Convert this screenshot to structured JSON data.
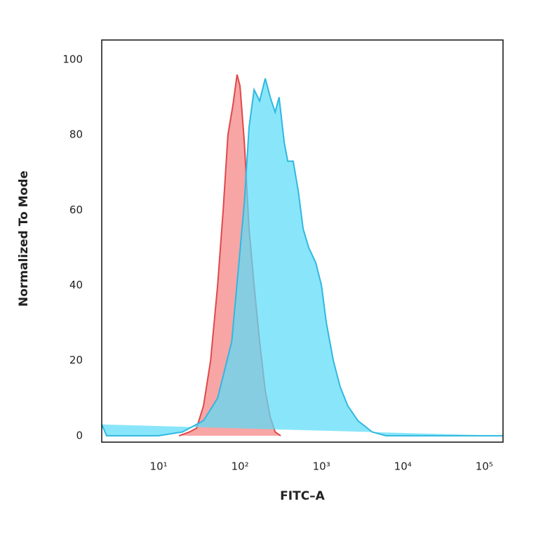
{
  "chart_data": {
    "type": "area",
    "xlabel": "FITC–A",
    "ylabel": "Normalized To Mode",
    "xscale": "log",
    "xlim": [
      2,
      170000
    ],
    "ylim": [
      -1.7,
      105.2
    ],
    "xticks": [
      {
        "value": 10,
        "label": "10¹"
      },
      {
        "value": 100,
        "label": "10²"
      },
      {
        "value": 1000,
        "label": "10³"
      },
      {
        "value": 10000,
        "label": "10⁴"
      },
      {
        "value": 100000,
        "label": "10⁵"
      }
    ],
    "yticks": [
      0,
      20,
      40,
      60,
      80,
      100
    ],
    "grid": false,
    "series": [
      {
        "color": "#e0484a",
        "fill": "#f8a0a0",
        "x": [
          17.8,
          23.9,
          29.2,
          35.6,
          43.5,
          53,
          62,
          71,
          82,
          92,
          100,
          113,
          129,
          149,
          174,
          204,
          235,
          270,
          316
        ],
        "values": [
          0,
          1,
          2,
          8,
          20,
          40,
          60,
          80,
          88,
          96,
          93,
          78,
          55,
          40,
          25,
          12,
          5,
          1,
          0
        ]
      },
      {
        "color": "#2fb8e0",
        "fill": "#5cdcf8",
        "x": [
          2,
          2.3,
          10,
          19.6,
          35.6,
          53,
          79,
          96,
          113,
          129,
          149,
          174,
          204,
          235,
          270,
          302,
          349,
          385,
          450,
          520,
          596,
          698,
          851,
          1000,
          1150,
          1400,
          1700,
          2100,
          2800,
          4200,
          6200,
          170000
        ],
        "values": [
          3,
          0,
          0,
          1,
          4,
          10,
          25,
          45,
          62,
          82,
          92,
          89,
          95,
          90,
          86,
          90,
          78,
          73,
          73,
          65,
          55,
          50,
          46,
          40,
          30,
          20,
          13,
          8,
          4,
          1,
          0,
          0
        ]
      }
    ]
  }
}
